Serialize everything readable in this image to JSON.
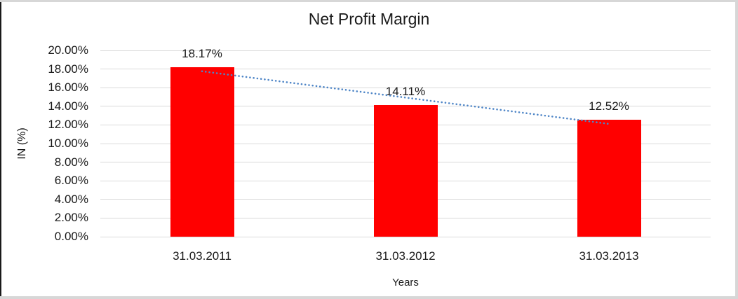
{
  "chart_data": {
    "type": "bar",
    "title": "Net Profit Margin",
    "categories": [
      "31.03.2011",
      "31.03.2012",
      "31.03.2013"
    ],
    "values": [
      18.17,
      14.11,
      12.52
    ],
    "data_labels": [
      "18.17%",
      "14.11%",
      "12.52%"
    ],
    "xlabel": "Years",
    "ylabel": "IN (%)",
    "ylim": [
      0,
      20
    ],
    "ytick_step": 2,
    "ytick_labels": [
      "0.00%",
      "2.00%",
      "4.00%",
      "6.00%",
      "8.00%",
      "10.00%",
      "12.00%",
      "14.00%",
      "16.00%",
      "18.00%",
      "20.00%"
    ],
    "grid": true,
    "legend": "none",
    "bar_color": "#ff0000",
    "gridline_color": "#d9d9d9",
    "trendline": {
      "type": "linear",
      "style": "dotted",
      "color": "#4f86c7",
      "start_value": 17.76,
      "end_value": 12.11
    }
  }
}
